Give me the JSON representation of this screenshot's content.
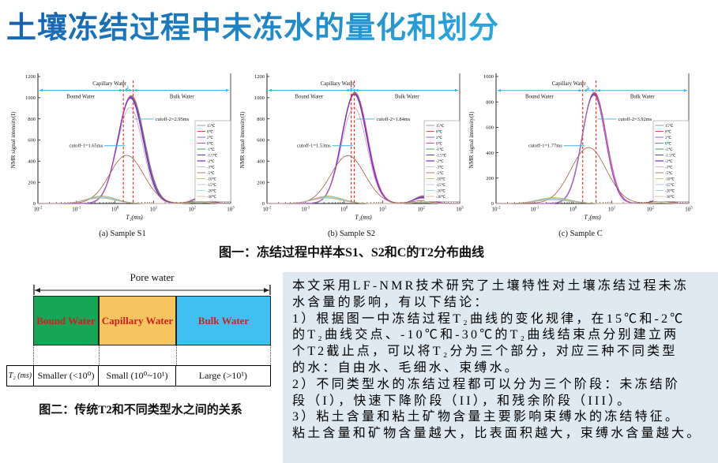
{
  "title": "土壤冻结过程中未冻水的量化和划分",
  "figure1": {
    "caption": "图一：冻结过程中样本S1、S2和C的T2分布曲线"
  },
  "figure2": {
    "caption": "图二：传统T2和不同类型水之间的关系",
    "pore_water_label": "Pore water",
    "label_color": "#cf2020",
    "boxes": [
      {
        "label": "Bound Water",
        "color": "#17a657"
      },
      {
        "label": "Capillary  Water",
        "color": "#f7c560"
      },
      {
        "label": "Bulk Water",
        "color": "#3fc0f0"
      }
    ],
    "table": {
      "header": "T₂ (ms)",
      "cells": [
        "Smaller (<10⁰)",
        "Small (10⁰~10¹)",
        "Large (>10¹)"
      ]
    }
  },
  "summary": {
    "lines": [
      "本文采用LF-NMR技术研究了土壤特性对土壤冻结过程未冻",
      "水含量的影响，有以下结论：",
      "1）根据图一中冻结过程T₂曲线的变化规律，在15℃和-2℃",
      "的T₂曲线交点、-10℃和-30℃的T₂曲线结束点分别建立两",
      "个T2截止点，可以将T₂分为三个部分，对应三种不同类型",
      "的水：自由水、毛细水、束缚水。",
      "2）不同类型水的冻结过程都可以分为三个阶段：未冻结阶",
      "段（I），快速下降阶段（II），和残余阶段（III）。",
      "3）粘土含量和粘土矿物含量主要影响束缚水的冻结特征。",
      "粘土含量和矿物含量越大，比表面积越大，束缚水含量越大。"
    ]
  },
  "chart_data": [
    {
      "type": "line",
      "title": "(a) Sample S1",
      "xlabel": "T₂(ms)",
      "ylabel": "NMR signal intensity(I)",
      "x_log_range": [
        -2,
        3
      ],
      "xtick_exponents": [
        "-2",
        "-1",
        "0",
        "1",
        "2",
        "3"
      ],
      "ylim": [
        0,
        1200
      ],
      "ytick_step": 200,
      "arrow_y": 1070,
      "regions": {
        "left": "Bound Water",
        "middle": "Capillary Water",
        "right": "Bulk Water"
      },
      "cutoffs": [
        {
          "label": "cutoff-1=1.65ms",
          "value_ms": 1.65
        },
        {
          "label": "cutoff-2=2.95ms",
          "value_ms": 2.95
        }
      ],
      "series": [
        {
          "name": "15℃",
          "color": "#9b9b9b",
          "w": 1.0,
          "peaks": [
            [
              0.42,
              0.34,
              1020
            ],
            [
              2.26,
              0.22,
              64
            ]
          ]
        },
        {
          "name": "8℃",
          "color": "#e84a45",
          "w": 1.0,
          "peaks": [
            [
              0.42,
              0.34,
              1016
            ],
            [
              2.25,
              0.22,
              61
            ]
          ]
        },
        {
          "name": "2℃",
          "color": "#7b68cf",
          "w": 1.0,
          "peaks": [
            [
              0.415,
              0.34,
              1012
            ],
            [
              2.25,
              0.22,
              59
            ]
          ]
        },
        {
          "name": "0℃",
          "color": "#ef3dc1",
          "w": 1.0,
          "peaks": [
            [
              0.41,
              0.335,
              1008
            ],
            [
              2.24,
              0.22,
              57
            ]
          ]
        },
        {
          "name": "-1℃",
          "color": "#43a257",
          "w": 1.0,
          "peaks": [
            [
              0.41,
              0.335,
              1004
            ],
            [
              2.24,
              0.22,
              55
            ]
          ]
        },
        {
          "name": "-1.5℃",
          "color": "#3f518f",
          "w": 1.0,
          "peaks": [
            [
              0.405,
              0.33,
              1000
            ],
            [
              2.23,
              0.22,
              53
            ]
          ]
        },
        {
          "name": "-2℃",
          "color": "#8324cf",
          "w": 1.2,
          "peaks": [
            [
              0.4,
              0.33,
              996
            ],
            [
              2.23,
              0.22,
              51
            ]
          ]
        },
        {
          "name": "-3℃",
          "color": "#c98fc4",
          "w": 0.7,
          "peaks": [
            [
              0.39,
              0.33,
              908
            ],
            [
              2.22,
              0.22,
              45
            ]
          ]
        },
        {
          "name": "-5℃",
          "color": "#9e5f41",
          "w": 0.8,
          "peaks": [
            [
              0.3,
              0.44,
              455
            ],
            [
              2.21,
              0.24,
              27
            ]
          ]
        },
        {
          "name": "-10℃",
          "color": "#b5a642",
          "w": 0.7,
          "peaks": [
            [
              -0.35,
              0.38,
              70
            ],
            [
              2.2,
              0.22,
              16
            ]
          ]
        },
        {
          "name": "-15℃",
          "color": "#92b8d4",
          "w": 0.7,
          "peaks": [
            [
              -0.36,
              0.38,
              63
            ],
            [
              2.2,
              0.22,
              13
            ]
          ]
        },
        {
          "name": "-20℃",
          "color": "#6fcfdc",
          "w": 0.7,
          "peaks": [
            [
              -0.37,
              0.38,
              57
            ],
            [
              2.2,
              0.22,
              11
            ]
          ]
        },
        {
          "name": "-30℃",
          "color": "#d8a878",
          "w": 0.7,
          "peaks": [
            [
              -0.38,
              0.38,
              51
            ],
            [
              2.2,
              0.22,
              9
            ]
          ]
        }
      ]
    },
    {
      "type": "line",
      "title": "(b) Sample S2",
      "xlabel": "T₂(ms)",
      "ylabel": "NMR signal intensity(I)",
      "x_log_range": [
        -2,
        3
      ],
      "xtick_exponents": [
        "-2",
        "-1",
        "0",
        "1",
        "2",
        "3"
      ],
      "ylim": [
        0,
        1200
      ],
      "ytick_step": 200,
      "arrow_y": 1070,
      "regions": {
        "left": "Bound Water",
        "middle": "Capillary Water",
        "right": "Bulk Water"
      },
      "cutoffs": [
        {
          "label": "cutoff-1=1.53ms",
          "value_ms": 1.53
        },
        {
          "label": "cutoff-2=1.84ms",
          "value_ms": 1.84
        }
      ],
      "series": [
        {
          "name": "15℃",
          "color": "#9b9b9b",
          "w": 1.0,
          "peaks": [
            [
              0.28,
              0.33,
              1052
            ],
            [
              2.06,
              0.22,
              74
            ]
          ]
        },
        {
          "name": "8℃",
          "color": "#e84a45",
          "w": 1.0,
          "peaks": [
            [
              0.28,
              0.33,
              1048
            ],
            [
              2.06,
              0.22,
              71
            ]
          ]
        },
        {
          "name": "2℃",
          "color": "#7b68cf",
          "w": 1.0,
          "peaks": [
            [
              0.275,
              0.33,
              1045
            ],
            [
              2.05,
              0.22,
              68
            ]
          ]
        },
        {
          "name": "0℃",
          "color": "#ef3dc1",
          "w": 1.0,
          "peaks": [
            [
              0.275,
              0.33,
              1042
            ],
            [
              2.05,
              0.22,
              65
            ]
          ]
        },
        {
          "name": "-1℃",
          "color": "#43a257",
          "w": 1.0,
          "peaks": [
            [
              0.27,
              0.325,
              1039
            ],
            [
              2.04,
              0.22,
              62
            ]
          ]
        },
        {
          "name": "-1.5℃",
          "color": "#3f518f",
          "w": 1.0,
          "peaks": [
            [
              0.27,
              0.325,
              1036
            ],
            [
              2.04,
              0.22,
              59
            ]
          ]
        },
        {
          "name": "-2℃",
          "color": "#8324cf",
          "w": 1.2,
          "peaks": [
            [
              0.265,
              0.325,
              1032
            ],
            [
              2.03,
              0.22,
              56
            ]
          ]
        },
        {
          "name": "-3℃",
          "color": "#c98fc4",
          "w": 0.7,
          "peaks": [
            [
              0.26,
              0.33,
              905
            ],
            [
              2.03,
              0.22,
              48
            ]
          ]
        },
        {
          "name": "-5℃",
          "color": "#9e5f41",
          "w": 0.8,
          "peaks": [
            [
              0.1,
              0.44,
              452
            ],
            [
              2.0,
              0.24,
              26
            ]
          ]
        },
        {
          "name": "-10℃",
          "color": "#b5a642",
          "w": 0.7,
          "peaks": [
            [
              -0.42,
              0.38,
              70
            ],
            [
              2.0,
              0.22,
              15
            ]
          ]
        },
        {
          "name": "-15℃",
          "color": "#92b8d4",
          "w": 0.7,
          "peaks": [
            [
              -0.43,
              0.38,
              63
            ],
            [
              2.0,
              0.22,
              12
            ]
          ]
        },
        {
          "name": "-20℃",
          "color": "#6fcfdc",
          "w": 0.7,
          "peaks": [
            [
              -0.44,
              0.38,
              57
            ],
            [
              2.0,
              0.22,
              10
            ]
          ]
        },
        {
          "name": "-30℃",
          "color": "#d8a878",
          "w": 0.7,
          "peaks": [
            [
              -0.45,
              0.38,
              50
            ],
            [
              2.0,
              0.22,
              8
            ]
          ]
        }
      ]
    },
    {
      "type": "line",
      "title": "(c) Sample C",
      "xlabel": "T₂(ms)",
      "ylabel": "NMR signal intensity(I)",
      "x_log_range": [
        -2,
        3
      ],
      "xtick_exponents": [
        "-2",
        "-1",
        "0",
        "1",
        "2",
        "3"
      ],
      "ylim": [
        0,
        1000
      ],
      "ytick_step": 200,
      "arrow_y": 890,
      "regions": {
        "left": "Bound Water",
        "middle": "Capillary Water",
        "right": "Bulk Water"
      },
      "cutoffs": [
        {
          "label": "cutoff-1=1.77ms",
          "value_ms": 1.77
        },
        {
          "label": "cutoff-2=3.92ms",
          "value_ms": 3.92
        }
      ],
      "series": [
        {
          "name": "15℃",
          "color": "#9b9b9b",
          "w": 1.0,
          "peaks": [
            [
              0.55,
              0.31,
              876
            ],
            [
              2.3,
              0.2,
              42
            ]
          ]
        },
        {
          "name": "8℃",
          "color": "#e84a45",
          "w": 1.0,
          "peaks": [
            [
              0.55,
              0.31,
              872
            ],
            [
              2.3,
              0.2,
              39
            ]
          ]
        },
        {
          "name": "2℃",
          "color": "#7b68cf",
          "w": 1.0,
          "peaks": [
            [
              0.545,
              0.31,
              869
            ],
            [
              2.29,
              0.2,
              37
            ]
          ]
        },
        {
          "name": "0℃",
          "color": "#ef3dc1",
          "w": 1.0,
          "peaks": [
            [
              0.545,
              0.31,
              866
            ],
            [
              2.29,
              0.2,
              35
            ]
          ]
        },
        {
          "name": "-1℃",
          "color": "#43a257",
          "w": 1.0,
          "peaks": [
            [
              0.54,
              0.305,
              863
            ],
            [
              2.28,
              0.2,
              33
            ]
          ]
        },
        {
          "name": "-1.5℃",
          "color": "#3f518f",
          "w": 1.0,
          "peaks": [
            [
              0.54,
              0.305,
              860
            ],
            [
              2.28,
              0.2,
              31
            ]
          ]
        },
        {
          "name": "-2℃",
          "color": "#8324cf",
          "w": 1.2,
          "peaks": [
            [
              0.535,
              0.305,
              857
            ],
            [
              2.28,
              0.2,
              29
            ]
          ]
        },
        {
          "name": "-3℃",
          "color": "#c98fc4",
          "w": 0.7,
          "peaks": [
            [
              0.54,
              0.31,
              850
            ],
            [
              2.3,
              0.2,
              26
            ]
          ]
        },
        {
          "name": "-5℃",
          "color": "#9e5f41",
          "w": 0.8,
          "peaks": [
            [
              0.4,
              0.46,
              440
            ],
            [
              2.28,
              0.22,
              18
            ]
          ]
        },
        {
          "name": "-10℃",
          "color": "#b5a642",
          "w": 0.7,
          "peaks": [
            [
              -0.5,
              0.42,
              46
            ],
            [
              2.27,
              0.2,
              8
            ]
          ]
        },
        {
          "name": "-15℃",
          "color": "#92b8d4",
          "w": 0.7,
          "peaks": [
            [
              -0.51,
              0.42,
              40
            ],
            [
              2.27,
              0.2,
              6
            ]
          ]
        },
        {
          "name": "-20℃",
          "color": "#6fcfdc",
          "w": 0.7,
          "peaks": [
            [
              -0.52,
              0.42,
              34
            ],
            [
              2.27,
              0.2,
              5
            ]
          ]
        },
        {
          "name": "-30℃",
          "color": "#d8a878",
          "w": 0.7,
          "peaks": [
            [
              -0.53,
              0.42,
              29
            ],
            [
              2.27,
              0.2,
              4
            ]
          ]
        }
      ]
    }
  ]
}
